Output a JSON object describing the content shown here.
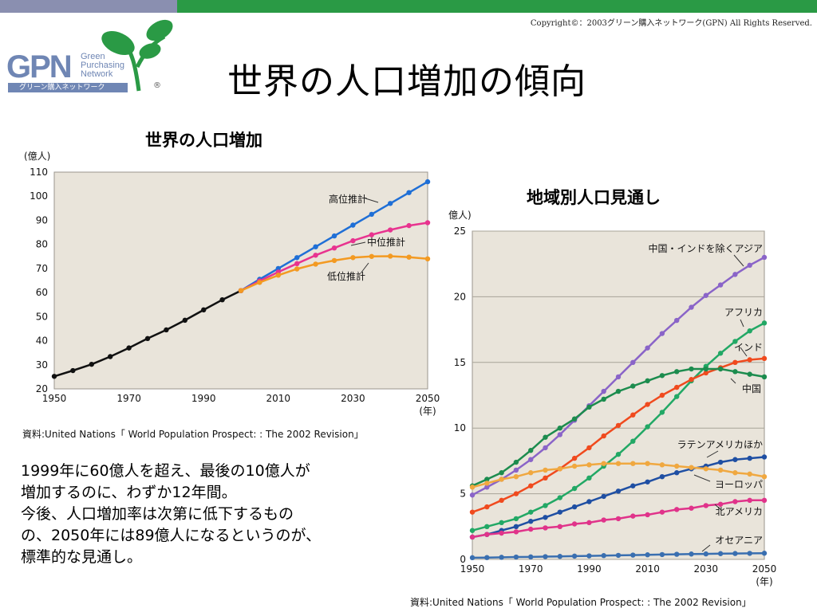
{
  "copyright": "Copyright©：2003グリーン購入ネットワーク(GPN) All Rights Reserved.",
  "logo": {
    "mark": "GPN",
    "sub_lines": [
      "Green",
      "Purchasing",
      "Network"
    ],
    "strip": "グリーン購入ネットワーク",
    "reg": "®"
  },
  "title": "世界の人口増加の傾向",
  "note_lines": [
    "1999年に60億人を超え、最後の10億人が",
    "増加するのに、わずか12年間。",
    "今後、人口増加率は次第に低下するもの",
    "の、2050年には89億人になるというのが、",
    "標準的な見通し。"
  ],
  "colors": {
    "plot_bg": "#e9e4da",
    "black": "#111111",
    "blue": "#1f6fd6",
    "pink": "#e8338f",
    "orange": "#f39a22",
    "purple": "#8a64c8",
    "green": "#22a865",
    "red": "#f04a1e",
    "darkgreen": "#1c8c4e",
    "navy": "#1f4fa3",
    "lightorange": "#f0a840",
    "magenta": "#e0338a",
    "teal": "#3a6fb0"
  },
  "chart_data": [
    {
      "type": "line",
      "title": "世界の人口増加",
      "unit_label": "(億人)",
      "x_unit": "(年)",
      "x_ticks": [
        "1950",
        "1970",
        "1990",
        "2010",
        "2030",
        "2050"
      ],
      "y_ticks": [
        "20",
        "30",
        "40",
        "50",
        "60",
        "70",
        "80",
        "90",
        "100",
        "110"
      ],
      "xlim": [
        1950,
        2050
      ],
      "ylim": [
        20,
        110
      ],
      "source": "資料:United Nations「 World Population Prospect: : The 2002 Revision」",
      "series": [
        {
          "name": "",
          "color_key": "black",
          "x": [
            1950,
            1955,
            1960,
            1965,
            1970,
            1975,
            1980,
            1985,
            1990,
            1995,
            2000
          ],
          "y": [
            25.2,
            27.6,
            30.2,
            33.4,
            37.0,
            40.9,
            44.5,
            48.5,
            52.8,
            57.0,
            60.8
          ]
        },
        {
          "name": "高位推計",
          "color_key": "blue",
          "x": [
            2000,
            2005,
            2010,
            2015,
            2020,
            2025,
            2030,
            2035,
            2040,
            2045,
            2050
          ],
          "y": [
            60.8,
            65.5,
            70.0,
            74.5,
            79.0,
            83.5,
            88.0,
            92.5,
            97.0,
            101.5,
            106.0
          ]
        },
        {
          "name": "中位推計",
          "color_key": "pink",
          "x": [
            2000,
            2005,
            2010,
            2015,
            2020,
            2025,
            2030,
            2035,
            2040,
            2045,
            2050
          ],
          "y": [
            60.8,
            64.8,
            68.5,
            72.0,
            75.5,
            78.5,
            81.5,
            84.0,
            86.0,
            87.8,
            89.0
          ]
        },
        {
          "name": "低位推計",
          "color_key": "orange",
          "x": [
            2000,
            2005,
            2010,
            2015,
            2020,
            2025,
            2030,
            2035,
            2040,
            2045,
            2050
          ],
          "y": [
            60.8,
            64.2,
            67.2,
            69.8,
            71.8,
            73.3,
            74.5,
            75.0,
            75.1,
            74.7,
            74.0
          ]
        }
      ]
    },
    {
      "type": "line",
      "title": "地域別人口見通し",
      "unit_label": "億人)",
      "x_unit": "(年)",
      "x_ticks": [
        "1950",
        "1970",
        "1990",
        "2010",
        "2030",
        "2050"
      ],
      "y_ticks": [
        "0",
        "5",
        "10",
        "15",
        "20",
        "25"
      ],
      "xlim": [
        1950,
        2050
      ],
      "ylim": [
        0,
        25
      ],
      "source": "資料:United Nations「 World Population Prospect: : The 2002 Revision」",
      "series": [
        {
          "name": "中国・インドを除くアジア",
          "color_key": "purple",
          "x": [
            1950,
            1955,
            1960,
            1965,
            1970,
            1975,
            1980,
            1985,
            1990,
            1995,
            2000,
            2005,
            2010,
            2015,
            2020,
            2025,
            2030,
            2035,
            2040,
            2045,
            2050
          ],
          "y": [
            4.9,
            5.5,
            6.1,
            6.8,
            7.6,
            8.5,
            9.5,
            10.6,
            11.7,
            12.8,
            13.9,
            15.0,
            16.1,
            17.2,
            18.2,
            19.2,
            20.1,
            20.9,
            21.7,
            22.4,
            23.0
          ]
        },
        {
          "name": "アフリカ",
          "color_key": "green",
          "x": [
            1950,
            1955,
            1960,
            1965,
            1970,
            1975,
            1980,
            1985,
            1990,
            1995,
            2000,
            2005,
            2010,
            2015,
            2020,
            2025,
            2030,
            2035,
            2040,
            2045,
            2050
          ],
          "y": [
            2.2,
            2.5,
            2.8,
            3.1,
            3.6,
            4.1,
            4.7,
            5.4,
            6.2,
            7.1,
            8.0,
            9.0,
            10.1,
            11.2,
            12.4,
            13.6,
            14.7,
            15.7,
            16.6,
            17.4,
            18.0
          ]
        },
        {
          "name": "インド",
          "color_key": "red",
          "x": [
            1950,
            1955,
            1960,
            1965,
            1970,
            1975,
            1980,
            1985,
            1990,
            1995,
            2000,
            2005,
            2010,
            2015,
            2020,
            2025,
            2030,
            2035,
            2040,
            2045,
            2050
          ],
          "y": [
            3.6,
            4.0,
            4.5,
            5.0,
            5.6,
            6.2,
            6.9,
            7.7,
            8.5,
            9.4,
            10.2,
            11.0,
            11.8,
            12.5,
            13.1,
            13.7,
            14.2,
            14.6,
            15.0,
            15.2,
            15.3
          ]
        },
        {
          "name": "中国",
          "color_key": "darkgreen",
          "x": [
            1950,
            1955,
            1960,
            1965,
            1970,
            1975,
            1980,
            1985,
            1990,
            1995,
            2000,
            2005,
            2010,
            2015,
            2020,
            2025,
            2030,
            2035,
            2040,
            2045,
            2050
          ],
          "y": [
            5.6,
            6.1,
            6.6,
            7.4,
            8.3,
            9.3,
            10.0,
            10.7,
            11.6,
            12.2,
            12.8,
            13.2,
            13.6,
            14.0,
            14.3,
            14.5,
            14.5,
            14.5,
            14.3,
            14.1,
            13.9
          ]
        },
        {
          "name": "ラテンアメリカほか",
          "color_key": "navy",
          "x": [
            1950,
            1955,
            1960,
            1965,
            1970,
            1975,
            1980,
            1985,
            1990,
            1995,
            2000,
            2005,
            2010,
            2015,
            2020,
            2025,
            2030,
            2035,
            2040,
            2045,
            2050
          ],
          "y": [
            1.7,
            1.9,
            2.2,
            2.5,
            2.9,
            3.2,
            3.6,
            4.0,
            4.4,
            4.8,
            5.2,
            5.6,
            5.9,
            6.3,
            6.6,
            6.9,
            7.1,
            7.4,
            7.6,
            7.7,
            7.8
          ]
        },
        {
          "name": "ヨーロッパ",
          "color_key": "lightorange",
          "x": [
            1950,
            1955,
            1960,
            1965,
            1970,
            1975,
            1980,
            1985,
            1990,
            1995,
            2000,
            2005,
            2010,
            2015,
            2020,
            2025,
            2030,
            2035,
            2040,
            2045,
            2050
          ],
          "y": [
            5.5,
            5.8,
            6.1,
            6.3,
            6.6,
            6.8,
            6.9,
            7.1,
            7.2,
            7.3,
            7.3,
            7.3,
            7.3,
            7.2,
            7.1,
            7.0,
            6.9,
            6.8,
            6.6,
            6.5,
            6.3
          ]
        },
        {
          "name": "北アメリカ",
          "color_key": "magenta",
          "x": [
            1950,
            1955,
            1960,
            1965,
            1970,
            1975,
            1980,
            1985,
            1990,
            1995,
            2000,
            2005,
            2010,
            2015,
            2020,
            2025,
            2030,
            2035,
            2040,
            2045,
            2050
          ],
          "y": [
            1.7,
            1.9,
            2.0,
            2.1,
            2.3,
            2.4,
            2.5,
            2.7,
            2.8,
            3.0,
            3.1,
            3.3,
            3.4,
            3.6,
            3.8,
            3.9,
            4.1,
            4.2,
            4.4,
            4.5,
            4.5
          ]
        },
        {
          "name": "オセアニア",
          "color_key": "teal",
          "x": [
            1950,
            1955,
            1960,
            1965,
            1970,
            1975,
            1980,
            1985,
            1990,
            1995,
            2000,
            2005,
            2010,
            2015,
            2020,
            2025,
            2030,
            2035,
            2040,
            2045,
            2050
          ],
          "y": [
            0.13,
            0.14,
            0.16,
            0.18,
            0.19,
            0.21,
            0.23,
            0.25,
            0.27,
            0.29,
            0.31,
            0.33,
            0.35,
            0.37,
            0.39,
            0.41,
            0.42,
            0.44,
            0.45,
            0.46,
            0.47
          ]
        }
      ]
    }
  ]
}
